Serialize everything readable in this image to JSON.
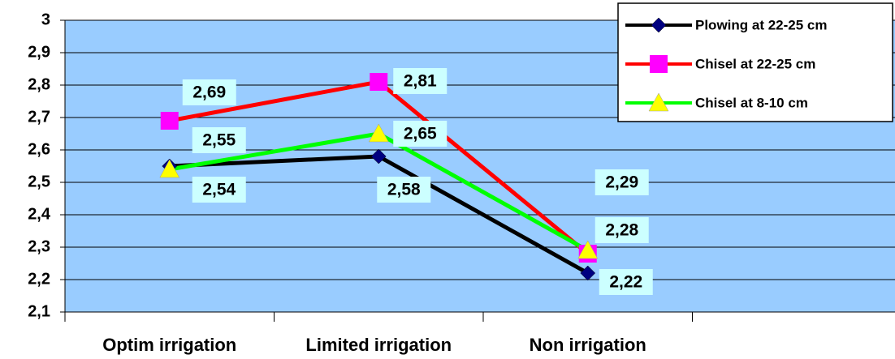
{
  "chart_data": {
    "type": "line",
    "categories": [
      "Optim irrigation",
      "Limited irrigation",
      "Non irrigation",
      null
    ],
    "series": [
      {
        "name": "Plowing at 22-25 cm",
        "color": "#000000",
        "marker_color": "#000080",
        "marker": "diamond",
        "values": [
          2.55,
          2.58,
          2.22,
          null
        ],
        "value_labels": [
          "2,55",
          "2,58",
          "2,22",
          null
        ]
      },
      {
        "name": "Chisel at 22-25 cm",
        "color": "#ff0000",
        "marker_color": "#ff00ff",
        "marker": "square",
        "values": [
          2.69,
          2.81,
          2.28,
          null
        ],
        "value_labels": [
          "2,69",
          "2,81",
          "2,28",
          null
        ]
      },
      {
        "name": "Chisel at 8-10 cm",
        "color": "#00ff00",
        "marker_color": "#ffff00",
        "marker": "triangle",
        "values": [
          2.54,
          2.65,
          2.29,
          null
        ],
        "value_labels": [
          "2,54",
          "2,65",
          "2,29",
          null
        ]
      }
    ],
    "ylim": [
      2.1,
      3
    ],
    "yticks": [
      {
        "value": 2.1,
        "label": "2,1"
      },
      {
        "value": 2.2,
        "label": "2,2"
      },
      {
        "value": 2.3,
        "label": "2,3"
      },
      {
        "value": 2.4,
        "label": "2,4"
      },
      {
        "value": 2.5,
        "label": "2,5"
      },
      {
        "value": 2.6,
        "label": "2,6"
      },
      {
        "value": 2.7,
        "label": "2,7"
      },
      {
        "value": 2.8,
        "label": "2,8"
      },
      {
        "value": 2.9,
        "label": "2,9"
      },
      3
    ],
    "grid": true,
    "plot_background": "#99ccff",
    "label_background": "#ccffff",
    "legend": "top-right"
  }
}
